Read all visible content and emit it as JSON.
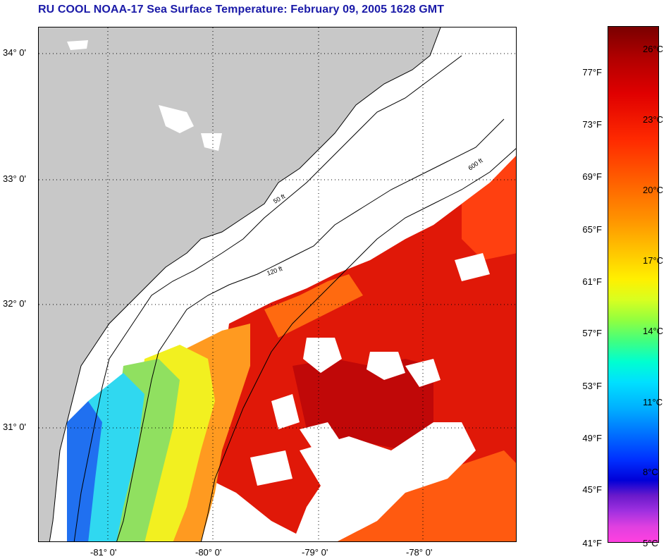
{
  "title": "RU COOL  NOAA-17  Sea Surface Temperature:  February 09, 2005 1628 GMT",
  "map": {
    "latitude_labels": [
      "34° 0'",
      "33° 0'",
      "32° 0'",
      "31° 0'"
    ],
    "longitude_labels": [
      "-81° 0'",
      "-80° 0'",
      "-79° 0'",
      "-78° 0'"
    ],
    "depth_contour_labels": [
      "50 ft",
      "120 ft",
      "600 ft"
    ],
    "colors": {
      "land": "#c8c8c8",
      "cloud_no_data": "#ffffff",
      "coastline": "#000000",
      "gridline": "#000000"
    }
  },
  "colorbar": {
    "fahrenheit_labels": [
      "77°F",
      "73°F",
      "69°F",
      "65°F",
      "61°F",
      "57°F",
      "53°F",
      "49°F",
      "45°F",
      "41°F"
    ],
    "celsius_labels": [
      "26°C",
      "23°C",
      "20°C",
      "17°C",
      "14°C",
      "11°C",
      "8°C",
      "5°C"
    ],
    "range_f": [
      41,
      80
    ],
    "range_c": [
      5,
      27
    ]
  }
}
